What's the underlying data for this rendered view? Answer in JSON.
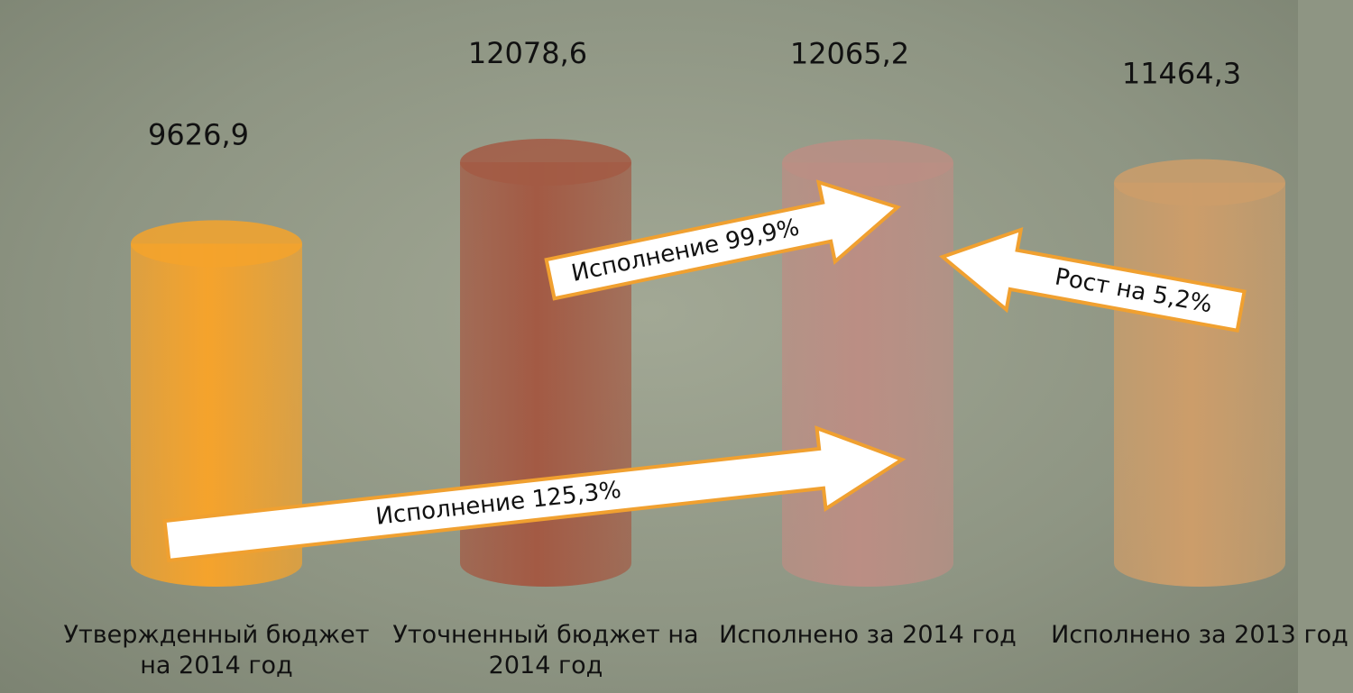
{
  "chart_data": {
    "type": "cylinder",
    "categories": [
      "Утвержденный бюджет на 2014 год",
      "Уточненный бюджет на 2014 год",
      "Исполнено за 2014 год",
      "Исполнено за 2013 год"
    ],
    "values": [
      9626.9,
      12078.6,
      12065.2,
      11464.3
    ],
    "value_labels": [
      "9626,9",
      "12078,6",
      "12065,2",
      "11464,3"
    ],
    "colors": [
      "#f5a32c",
      "#a35a44",
      "#bb8e84",
      "#cc9d6a"
    ],
    "annotations": [
      "Исполнение 125,3%",
      "Исполнение 99,9%",
      "Рост на 5,2%"
    ]
  }
}
